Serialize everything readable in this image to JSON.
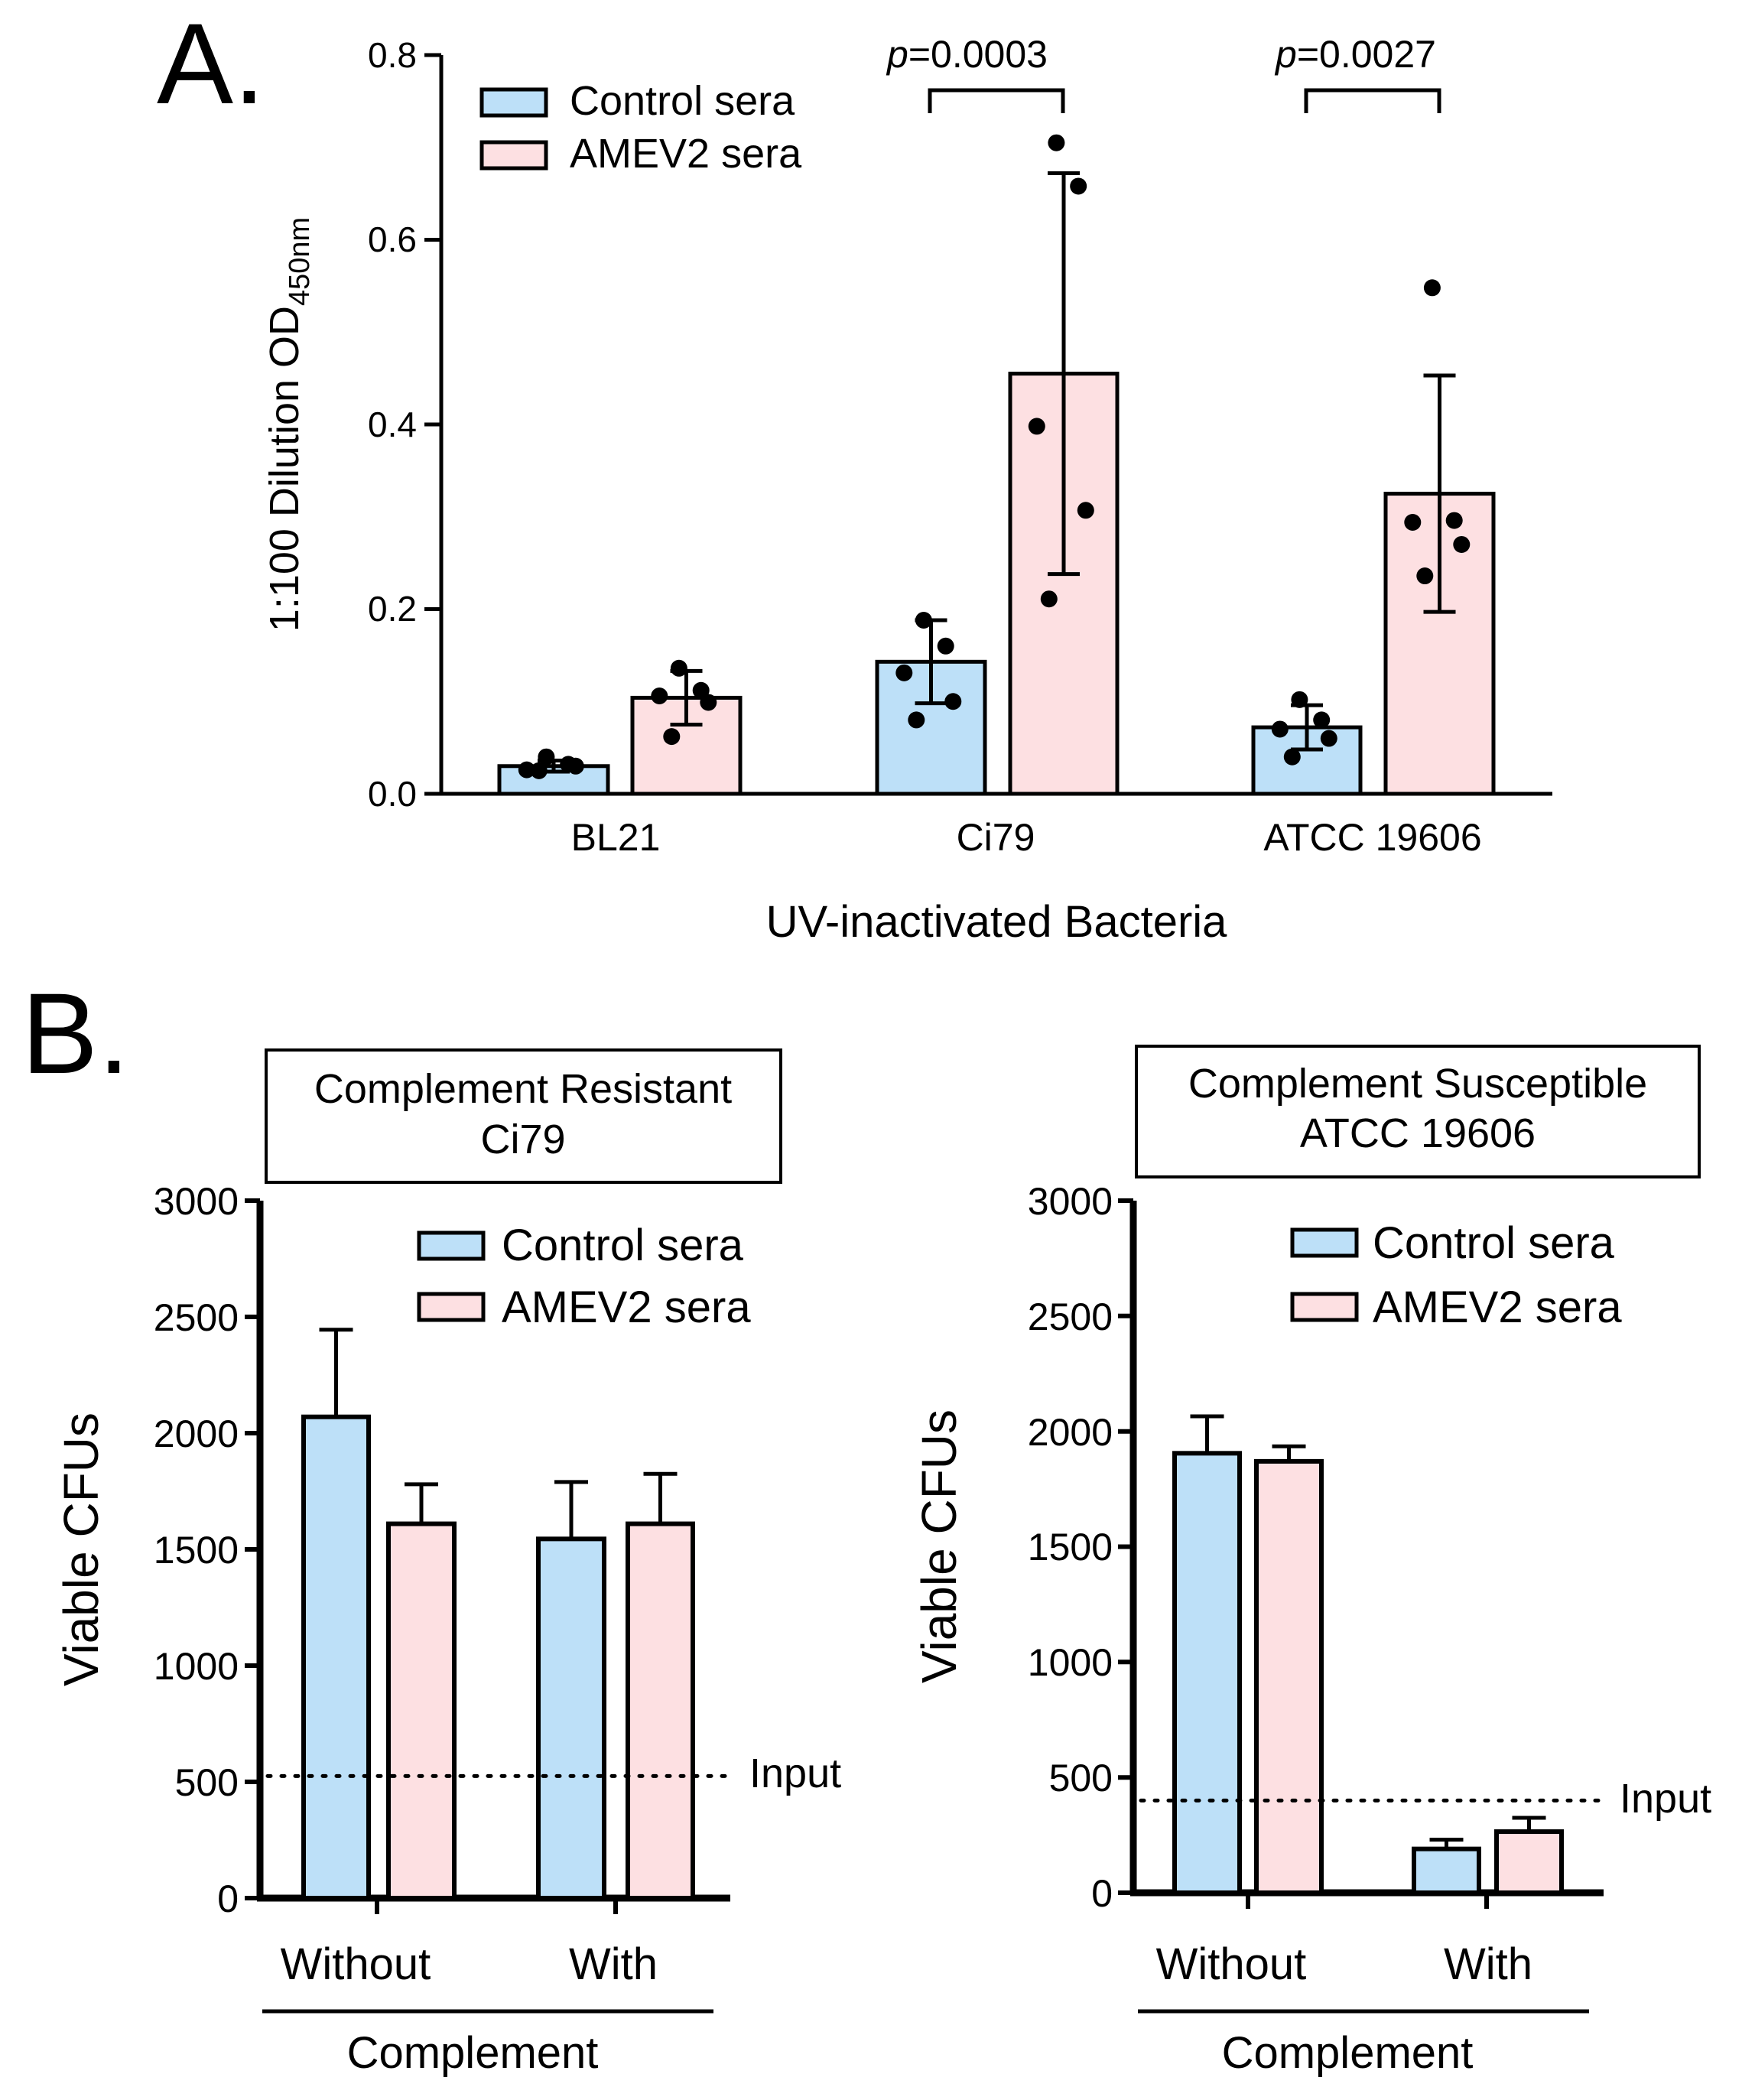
{
  "colors": {
    "control": "#bde0f8",
    "amev2": "#fde0e2",
    "ink": "#000000"
  },
  "chart_data": [
    {
      "panel_label": "A.",
      "type": "bar",
      "title": "",
      "xlabel": "UV-inactivated Bacteria",
      "ylabel_main": "1:100 Dilution OD",
      "ylabel_sub": "450nm",
      "ylim": [
        0,
        0.8
      ],
      "yticks": [
        "0.0",
        "0.2",
        "0.4",
        "0.6",
        "0.8"
      ],
      "ytick_values": [
        0,
        0.2,
        0.4,
        0.6,
        0.8
      ],
      "categories": [
        "BL21",
        "Ci79",
        "ATCC 19606"
      ],
      "legend": [
        "Control sera",
        "AMEV2 sera"
      ],
      "legend_position": "top-left",
      "series": [
        {
          "name": "Control sera",
          "values": [
            0.03,
            0.143,
            0.072
          ],
          "sd": [
            0.006,
            0.045,
            0.024
          ],
          "points": [
            [
              0.04,
              0.032,
              0.026,
              0.03,
              0.025
            ],
            [
              0.188,
              0.16,
              0.131,
              0.1,
              0.08
            ],
            [
              0.102,
              0.08,
              0.07,
              0.06,
              0.04
            ]
          ]
        },
        {
          "name": "AMEV2 sera",
          "values": [
            0.104,
            0.455,
            0.325
          ],
          "sd": [
            0.029,
            0.217,
            0.128
          ],
          "points": [
            [
              0.136,
              0.112,
              0.106,
              0.099,
              0.062
            ],
            [
              0.705,
              0.658,
              0.398,
              0.307,
              0.211
            ],
            [
              0.548,
              0.296,
              0.294,
              0.27,
              0.236
            ]
          ]
        }
      ],
      "annotations": [
        {
          "category_index": 1,
          "p_label": "p",
          "p_value": "=0.0003"
        },
        {
          "category_index": 2,
          "p_label": "p",
          "p_value": "=0.0027"
        }
      ]
    },
    {
      "panel_label": "B.",
      "type": "bar",
      "title_line1": "Complement Resistant",
      "title_line2": "Ci79",
      "ylabel": "Viable CFUs",
      "xlabel": "Complement",
      "ylim": [
        0,
        3000
      ],
      "yticks": [
        "0",
        "500",
        "1000",
        "1500",
        "2000",
        "2500",
        "3000"
      ],
      "ytick_values": [
        0,
        500,
        1000,
        1500,
        2000,
        2500,
        3000
      ],
      "categories": [
        "Without",
        "With"
      ],
      "legend": [
        "Control sera",
        "AMEV2 sera"
      ],
      "legend_position": "top-right",
      "series": [
        {
          "name": "Control sera",
          "values": [
            2070,
            1545
          ],
          "err": [
            375,
            245
          ]
        },
        {
          "name": "AMEV2 sera",
          "values": [
            1610,
            1610
          ],
          "err": [
            170,
            215
          ]
        }
      ],
      "reference_line": {
        "value": 525,
        "label": "Input"
      }
    },
    {
      "panel_label": "",
      "type": "bar",
      "title_line1": "Complement Susceptible",
      "title_line2": "ATCC 19606",
      "ylabel": "Viable CFUs",
      "xlabel": "Complement",
      "ylim": [
        0,
        3000
      ],
      "yticks": [
        "0",
        "500",
        "1000",
        "1500",
        "2000",
        "2500",
        "3000"
      ],
      "ytick_values": [
        0,
        500,
        1000,
        1500,
        2000,
        2500,
        3000
      ],
      "categories": [
        "Without",
        "With"
      ],
      "legend": [
        "Control sera",
        "AMEV2 sera"
      ],
      "legend_position": "top-right",
      "series": [
        {
          "name": "Control sera",
          "values": [
            1905,
            190
          ],
          "err": [
            160,
            40
          ]
        },
        {
          "name": "AMEV2 sera",
          "values": [
            1870,
            265
          ],
          "err": [
            65,
            60
          ]
        }
      ],
      "reference_line": {
        "value": 400,
        "label": "Input"
      }
    }
  ]
}
